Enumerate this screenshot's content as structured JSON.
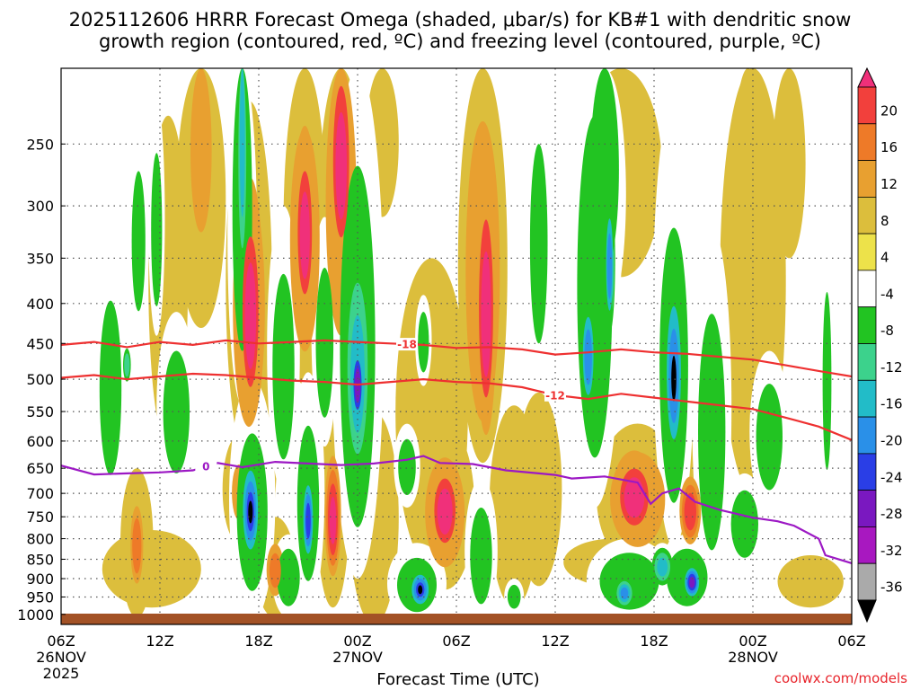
{
  "title": {
    "line1": "2025112606 HRRR Forecast Omega (shaded, μbar/s) for KB#1 with dendritic snow",
    "line2": "growth region (contoured, red, ºC) and freezing level (contoured, purple, ºC)"
  },
  "credit": "coolwx.com/models",
  "chart_data": {
    "type": "heatmap",
    "title": "2025112606 HRRR Forecast Omega (shaded, μbar/s) for KB#1 with dendritic snow growth region (contoured, red, ºC) and freezing level (contoured, purple, ºC)",
    "xlabel": "Forecast Time (UTC)",
    "ylabel": "",
    "x_hours_range": [
      0,
      48
    ],
    "y_pressure_range_hPa": [
      200,
      1030
    ],
    "x_ticks": [
      {
        "hour": 0,
        "label": "06Z",
        "sub1": "26NOV",
        "sub2": "2025"
      },
      {
        "hour": 6,
        "label": "12Z",
        "sub1": "",
        "sub2": ""
      },
      {
        "hour": 12,
        "label": "18Z",
        "sub1": "",
        "sub2": ""
      },
      {
        "hour": 18,
        "label": "00Z",
        "sub1": "27NOV",
        "sub2": ""
      },
      {
        "hour": 24,
        "label": "06Z",
        "sub1": "",
        "sub2": ""
      },
      {
        "hour": 30,
        "label": "12Z",
        "sub1": "",
        "sub2": ""
      },
      {
        "hour": 36,
        "label": "18Z",
        "sub1": "",
        "sub2": ""
      },
      {
        "hour": 42,
        "label": "00Z",
        "sub1": "28NOV",
        "sub2": ""
      },
      {
        "hour": 48,
        "label": "06Z",
        "sub1": "",
        "sub2": ""
      }
    ],
    "y_ticks": [
      250,
      300,
      350,
      400,
      450,
      500,
      550,
      600,
      650,
      700,
      750,
      800,
      850,
      900,
      950,
      1000
    ],
    "colorbar": {
      "labels": [
        "20",
        "16",
        "12",
        "8",
        "4",
        "-4",
        "-8",
        "-12",
        "-16",
        "-20",
        "-24",
        "-28",
        "-32",
        "-36"
      ],
      "colors": [
        "#f0307a",
        "#f2403c",
        "#ee7a28",
        "#e8a030",
        "#dcbe3c",
        "#ede24a",
        "#ffffff",
        "#22c422",
        "#3cd28c",
        "#22bcc8",
        "#2a90e8",
        "#2a3ee6",
        "#7a18c0",
        "#a818c0",
        "#aaaaaa",
        "#000000"
      ]
    },
    "omega_blobs": [
      {
        "t": 11.5,
        "p": 420,
        "dt": 0.9,
        "dp": 170,
        "v": 22
      },
      {
        "t": 11.4,
        "p": 430,
        "dt": 1.4,
        "dp": 210,
        "v": 9
      },
      {
        "t": 17.0,
        "p": 270,
        "dt": 0.9,
        "dp": 110,
        "v": 22
      },
      {
        "t": 17.0,
        "p": 320,
        "dt": 1.4,
        "dp": 180,
        "v": 8
      },
      {
        "t": 14.8,
        "p": 330,
        "dt": 0.8,
        "dp": 110,
        "v": 22
      },
      {
        "t": 14.8,
        "p": 350,
        "dt": 1.3,
        "dp": 160,
        "v": 9
      },
      {
        "t": 25.8,
        "p": 420,
        "dt": 0.8,
        "dp": 200,
        "v": 22
      },
      {
        "t": 25.6,
        "p": 400,
        "dt": 1.5,
        "dp": 240,
        "v": 9
      },
      {
        "t": 23.3,
        "p": 740,
        "dt": 1.2,
        "dp": 130,
        "v": 22
      },
      {
        "t": 23.3,
        "p": 750,
        "dt": 1.8,
        "dp": 180,
        "v": 8
      },
      {
        "t": 34.8,
        "p": 710,
        "dt": 1.6,
        "dp": 110,
        "v": 22
      },
      {
        "t": 35.0,
        "p": 720,
        "dt": 2.5,
        "dp": 150,
        "v": 8
      },
      {
        "t": 38.2,
        "p": 740,
        "dt": 0.8,
        "dp": 90,
        "v": 18
      },
      {
        "t": 38.2,
        "p": 720,
        "dt": 1.2,
        "dp": 140,
        "v": 7
      },
      {
        "t": 16.5,
        "p": 760,
        "dt": 0.6,
        "dp": 160,
        "v": 20
      },
      {
        "t": 16.5,
        "p": 760,
        "dt": 1.0,
        "dp": 220,
        "v": 7
      },
      {
        "t": 13.0,
        "p": 880,
        "dt": 0.7,
        "dp": 90,
        "v": 12
      },
      {
        "t": 13.0,
        "p": 880,
        "dt": 1.2,
        "dp": 130,
        "v": 5
      },
      {
        "t": 10.8,
        "p": 700,
        "dt": 0.6,
        "dp": 80,
        "v": 10
      },
      {
        "t": 10.8,
        "p": 700,
        "dt": 1.0,
        "dp": 110,
        "v": 5
      },
      {
        "t": 4.6,
        "p": 820,
        "dt": 0.5,
        "dp": 120,
        "v": 14
      },
      {
        "t": 4.6,
        "p": 830,
        "dt": 1.0,
        "dp": 180,
        "v": 6
      },
      {
        "t": 8.5,
        "p": 260,
        "dt": 0.9,
        "dp": 90,
        "v": 10
      },
      {
        "t": 8.5,
        "p": 280,
        "dt": 1.5,
        "dp": 150,
        "v": 6
      },
      {
        "t": 6.5,
        "p": 420,
        "dt": 1.2,
        "dp": 190,
        "v": 6
      },
      {
        "t": 19.5,
        "p": 230,
        "dt": 1.0,
        "dp": 80,
        "v": 5
      },
      {
        "t": 22.5,
        "p": 610,
        "dt": 2.2,
        "dp": 260,
        "v": 5
      },
      {
        "t": 29.0,
        "p": 720,
        "dt": 1.4,
        "dp": 200,
        "v": 5
      },
      {
        "t": 34.0,
        "p": 280,
        "dt": 2.5,
        "dp": 90,
        "v": 5
      },
      {
        "t": 44.2,
        "p": 230,
        "dt": 1.0,
        "dp": 120,
        "v": 6
      },
      {
        "t": 41.7,
        "p": 300,
        "dt": 1.0,
        "dp": 160,
        "v": 5
      },
      {
        "t": 45.5,
        "p": 910,
        "dt": 2.0,
        "dp": 70,
        "v": 5
      },
      {
        "t": 5.5,
        "p": 880,
        "dt": 3.0,
        "dp": 100,
        "v": 4
      },
      {
        "t": 19.0,
        "p": 800,
        "dt": 1.5,
        "dp": 250,
        "v": 5
      },
      {
        "t": 12.0,
        "p": 600,
        "dt": 1.2,
        "dp": 300,
        "v": 4
      },
      {
        "t": 33.5,
        "p": 860,
        "dt": 3.0,
        "dp": 60,
        "v": 4
      },
      {
        "t": 27.5,
        "p": 760,
        "dt": 1.5,
        "dp": 220,
        "v": 4
      },
      {
        "t": 42.0,
        "p": 440,
        "dt": 2.0,
        "dp": 260,
        "v": 4
      },
      {
        "t": 18.0,
        "p": 510,
        "dt": 0.6,
        "dp": 90,
        "v": -30
      },
      {
        "t": 18.0,
        "p": 500,
        "dt": 1.0,
        "dp": 200,
        "v": -17
      },
      {
        "t": 18.0,
        "p": 520,
        "dt": 1.6,
        "dp": 380,
        "v": -8
      },
      {
        "t": 11.5,
        "p": 740,
        "dt": 0.5,
        "dp": 90,
        "v": -40
      },
      {
        "t": 11.5,
        "p": 740,
        "dt": 0.8,
        "dp": 150,
        "v": -24
      },
      {
        "t": 11.6,
        "p": 760,
        "dt": 1.4,
        "dp": 260,
        "v": -8
      },
      {
        "t": 37.2,
        "p": 500,
        "dt": 0.5,
        "dp": 110,
        "v": -42
      },
      {
        "t": 37.2,
        "p": 500,
        "dt": 0.8,
        "dp": 180,
        "v": -22
      },
      {
        "t": 37.2,
        "p": 520,
        "dt": 1.3,
        "dp": 300,
        "v": -8
      },
      {
        "t": 21.8,
        "p": 930,
        "dt": 0.5,
        "dp": 45,
        "v": -40
      },
      {
        "t": 21.8,
        "p": 930,
        "dt": 0.9,
        "dp": 70,
        "v": -24
      },
      {
        "t": 21.6,
        "p": 920,
        "dt": 1.8,
        "dp": 110,
        "v": -8
      },
      {
        "t": 15.0,
        "p": 760,
        "dt": 0.5,
        "dp": 130,
        "v": -25
      },
      {
        "t": 15.0,
        "p": 740,
        "dt": 1.0,
        "dp": 250,
        "v": -8
      },
      {
        "t": 11.0,
        "p": 250,
        "dt": 0.4,
        "dp": 150,
        "v": -16
      },
      {
        "t": 11.0,
        "p": 300,
        "dt": 0.9,
        "dp": 240,
        "v": -8
      },
      {
        "t": 32.0,
        "p": 470,
        "dt": 0.6,
        "dp": 100,
        "v": -22
      },
      {
        "t": 32.4,
        "p": 430,
        "dt": 1.6,
        "dp": 300,
        "v": -8
      },
      {
        "t": 33.3,
        "p": 360,
        "dt": 0.4,
        "dp": 90,
        "v": -22
      },
      {
        "t": 38.3,
        "p": 910,
        "dt": 0.7,
        "dp": 60,
        "v": -28
      },
      {
        "t": 38.0,
        "p": 900,
        "dt": 1.8,
        "dp": 110,
        "v": -9
      },
      {
        "t": 34.2,
        "p": 940,
        "dt": 0.7,
        "dp": 50,
        "v": -20
      },
      {
        "t": 34.5,
        "p": 910,
        "dt": 2.6,
        "dp": 110,
        "v": -9
      },
      {
        "t": 36.5,
        "p": 870,
        "dt": 0.8,
        "dp": 60,
        "v": -16
      },
      {
        "t": 33.0,
        "p": 250,
        "dt": 1.3,
        "dp": 170,
        "v": -8
      },
      {
        "t": 4.7,
        "p": 340,
        "dt": 0.6,
        "dp": 100,
        "v": -9
      },
      {
        "t": 3.0,
        "p": 530,
        "dt": 1.0,
        "dp": 200,
        "v": -8
      },
      {
        "t": 4.0,
        "p": 480,
        "dt": 0.3,
        "dp": 30,
        "v": -14
      },
      {
        "t": 7.0,
        "p": 560,
        "dt": 1.2,
        "dp": 150,
        "v": -8
      },
      {
        "t": 13.8,
        "p": 900,
        "dt": 1.0,
        "dp": 110,
        "v": -9
      },
      {
        "t": 13.5,
        "p": 500,
        "dt": 1.0,
        "dp": 200,
        "v": -8
      },
      {
        "t": 21.0,
        "p": 650,
        "dt": 0.8,
        "dp": 80,
        "v": -8
      },
      {
        "t": 25.5,
        "p": 850,
        "dt": 1.0,
        "dp": 180,
        "v": -8
      },
      {
        "t": 27.5,
        "p": 950,
        "dt": 0.6,
        "dp": 50,
        "v": -8
      },
      {
        "t": 39.5,
        "p": 620,
        "dt": 1.2,
        "dp": 300,
        "v": -9
      },
      {
        "t": 41.5,
        "p": 770,
        "dt": 1.2,
        "dp": 110,
        "v": -9
      },
      {
        "t": 43.0,
        "p": 600,
        "dt": 1.2,
        "dp": 140,
        "v": -8
      },
      {
        "t": 46.5,
        "p": 520,
        "dt": 0.4,
        "dp": 200,
        "v": -8
      },
      {
        "t": 5.8,
        "p": 330,
        "dt": 0.5,
        "dp": 110,
        "v": -8
      },
      {
        "t": 29.0,
        "p": 350,
        "dt": 0.8,
        "dp": 150,
        "v": -8
      },
      {
        "t": 16.0,
        "p": 460,
        "dt": 0.8,
        "dp": 150,
        "v": -8
      },
      {
        "t": 22.0,
        "p": 450,
        "dt": 0.5,
        "dp": 60,
        "v": -8
      }
    ],
    "contours": [
      {
        "name": "-18",
        "color": "#ee3030",
        "label_at_hour": 21,
        "points": [
          [
            0,
            452
          ],
          [
            2,
            448
          ],
          [
            4,
            455
          ],
          [
            6,
            448
          ],
          [
            8,
            452
          ],
          [
            10,
            446
          ],
          [
            12,
            450
          ],
          [
            14,
            448
          ],
          [
            16,
            446
          ],
          [
            18,
            448
          ],
          [
            20,
            450
          ],
          [
            22,
            452
          ],
          [
            24,
            456
          ],
          [
            26,
            455
          ],
          [
            28,
            458
          ],
          [
            30,
            465
          ],
          [
            32,
            462
          ],
          [
            34,
            458
          ],
          [
            36,
            462
          ],
          [
            38,
            464
          ],
          [
            40,
            468
          ],
          [
            42,
            472
          ],
          [
            44,
            480
          ],
          [
            46,
            488
          ],
          [
            48,
            496
          ]
        ]
      },
      {
        "name": "-12",
        "color": "#ee3030",
        "label_at_hour": 30,
        "points": [
          [
            0,
            498
          ],
          [
            2,
            494
          ],
          [
            4,
            500
          ],
          [
            6,
            496
          ],
          [
            8,
            492
          ],
          [
            10,
            494
          ],
          [
            12,
            498
          ],
          [
            14,
            502
          ],
          [
            16,
            504
          ],
          [
            18,
            508
          ],
          [
            20,
            504
          ],
          [
            22,
            500
          ],
          [
            24,
            504
          ],
          [
            26,
            506
          ],
          [
            28,
            512
          ],
          [
            30,
            524
          ],
          [
            32,
            530
          ],
          [
            34,
            522
          ],
          [
            36,
            528
          ],
          [
            38,
            534
          ],
          [
            40,
            540
          ],
          [
            42,
            546
          ],
          [
            44,
            560
          ],
          [
            46,
            575
          ],
          [
            48,
            598
          ]
        ]
      },
      {
        "name": "0",
        "color": "#9c18c4",
        "label_at_hour": 8.8,
        "points": [
          [
            0,
            645
          ],
          [
            2,
            662
          ],
          [
            4,
            660
          ],
          [
            6,
            658
          ],
          [
            8,
            654
          ],
          [
            9.5,
            640
          ],
          [
            11,
            648
          ],
          [
            13,
            638
          ],
          [
            15,
            641
          ],
          [
            17,
            644
          ],
          [
            19,
            641
          ],
          [
            21,
            634
          ],
          [
            22,
            627
          ],
          [
            23,
            640
          ],
          [
            25,
            642
          ],
          [
            27,
            654
          ],
          [
            29,
            660
          ],
          [
            30,
            663
          ],
          [
            31,
            670
          ],
          [
            33,
            666
          ],
          [
            35,
            678
          ],
          [
            35.8,
            722
          ],
          [
            36.5,
            700
          ],
          [
            37.5,
            690
          ],
          [
            38.5,
            718
          ],
          [
            40,
            735
          ],
          [
            42,
            752
          ],
          [
            43.5,
            760
          ],
          [
            44.5,
            770
          ],
          [
            46,
            800
          ],
          [
            46.4,
            840
          ],
          [
            48,
            860
          ]
        ]
      }
    ]
  }
}
